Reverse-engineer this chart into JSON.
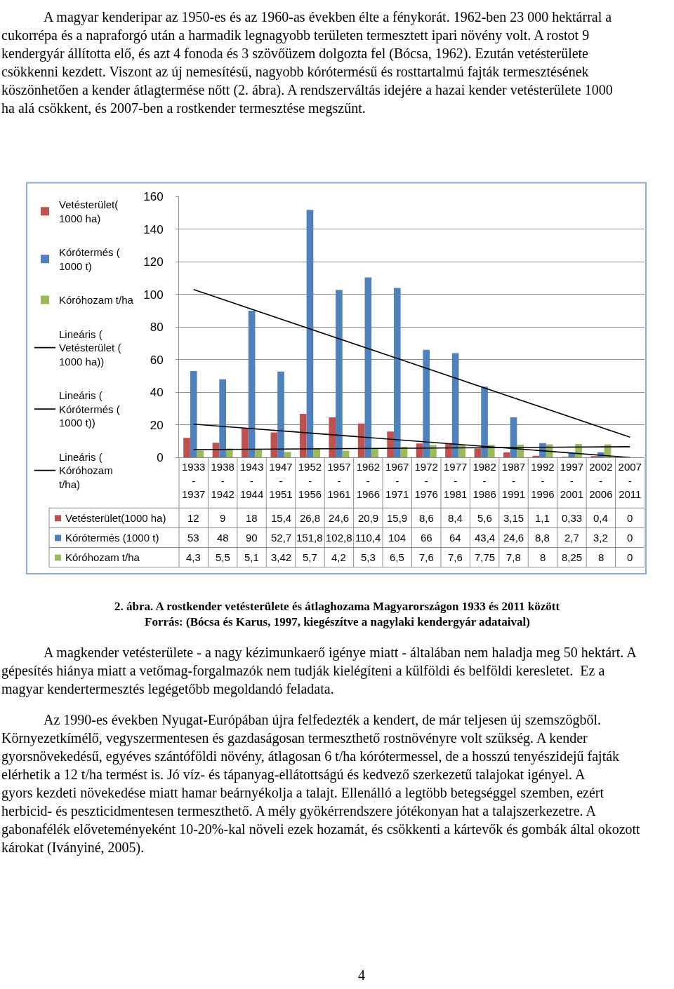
{
  "chart_data": {
    "type": "bar",
    "title": "2. ábra. A rostkender vetésterülete és átlaghozama Magyarországon 1933 és 2011 között",
    "subtitle": "Forrás: (Bócsa és Karus, 1997, kiegészítve a nagylaki kendergyár adataival)",
    "categories": [
      "1933 - 1937",
      "1938 - 1942",
      "1943 - 1944",
      "1947 - 1951",
      "1952 - 1956",
      "1957 - 1961",
      "1962 - 1966",
      "1967 - 1971",
      "1972 - 1976",
      "1977 - 1981",
      "1982 - 1986",
      "1987 - 1991",
      "1992 - 1996",
      "1997 - 2001",
      "2002 - 2006",
      "2007 - 2011"
    ],
    "series": [
      {
        "name": "Vetésterület(1000 ha)",
        "color": "#c0504d",
        "values": [
          12,
          9,
          18,
          15.4,
          26.8,
          24.6,
          20.9,
          15.9,
          8.6,
          8.4,
          5.6,
          3.15,
          1.1,
          0.33,
          0.4,
          0
        ],
        "value_labels": [
          "12",
          "9",
          "18",
          "15,4",
          "26,8",
          "24,6",
          "20,9",
          "15,9",
          "8,6",
          "8,4",
          "5,6",
          "3,15",
          "1,1",
          "0,33",
          "0,4",
          "0"
        ]
      },
      {
        "name": "Kórótermés (1000 t)",
        "color": "#4f81bd",
        "values": [
          53,
          48,
          90,
          52.7,
          151.8,
          102.8,
          110.4,
          104,
          66,
          64,
          43.4,
          24.6,
          8.8,
          2.7,
          3.2,
          0
        ],
        "value_labels": [
          "53",
          "48",
          "90",
          "52,7",
          "151,8",
          "102,8",
          "110,4",
          "104",
          "66",
          "64",
          "43,4",
          "24,6",
          "8,8",
          "2,7",
          "3,2",
          "0"
        ]
      },
      {
        "name": "Kóróhozam t/ha",
        "color": "#9bbb59",
        "values": [
          4.3,
          5.5,
          5.1,
          3.42,
          5.7,
          4.2,
          5.3,
          6.5,
          7.6,
          7.6,
          7.75,
          7.8,
          8,
          8.25,
          8,
          0
        ],
        "value_labels": [
          "4,3",
          "5,5",
          "5,1",
          "3,42",
          "5,7",
          "4,2",
          "5,3",
          "6,5",
          "7,6",
          "7,6",
          "7,75",
          "7,8",
          "8",
          "8,25",
          "8",
          "0"
        ]
      },
      {
        "name": "Lineáris (Vetésterület (1000 ha))",
        "type": "line",
        "color": "#000000",
        "x": [
          "1933 - 1937",
          "2007 - 2011"
        ],
        "values": [
          20.4,
          0
        ]
      },
      {
        "name": "Lineáris (Kórótermés (1000 t))",
        "type": "line",
        "color": "#000000",
        "x": [
          "1933 - 1937",
          "2007 - 2011"
        ],
        "values": [
          103,
          12.5
        ]
      },
      {
        "name": "Lineáris (Kóróhozam t/ha)",
        "type": "line",
        "color": "#000000",
        "x": [
          "1933 - 1937",
          "2007 - 2011"
        ],
        "values": [
          4.8,
          6.6
        ]
      }
    ],
    "ylim": [
      0,
      160
    ],
    "yticks": [
      0,
      20,
      40,
      60,
      80,
      100,
      120,
      140,
      160
    ],
    "grid": "y",
    "legend": "left",
    "annotations": [
      "A magyar kenderipar az 1950-es és az 1960-as években élte a fénykorát. 1962-ben 23 000 hektárral a cukorrépa és a napraforgó után a harmadik legnagyobb területen termesztett ipari növény volt. A rostot 9 kendergyár állította elő, és azt 4 fonoda és 3 szövőüzem dolgozta fel (Bócsa, 1962). Ezután vetésterülete csökkenni kezdett. Viszont az új nemesítésű, nagyobb kórótermésű és rosttartalmú fajták termesztésének köszönhetően a kender átlagtermése nőtt (2. ábra). A rendszerváltás idejére a hazai kender vetésterülete 1000 ha alá csökkent, és 2007-ben a rostkender termesztése megszűnt.",
      "A magkender vetésterülete - a nagy kézimunkaerő igénye miatt - általában nem haladja meg 50 hektárt. A gépesítés hiánya miatt a vetőmag-forgalmazók nem tudják kielégíteni a külföldi és belföldi keresletet.  Ez a magyar kendertermesztés legégetőbb megoldandó feladata.",
      "Az 1990-es években Nyugat-Európában újra felfedezték a kendert, de már teljesen új szemszögből. Környezetkímélő, vegyszermentesen és gazdaságosan termeszthető rostnövényre volt szükség. A kender gyorsnövekedésű, egyéves szántóföldi növény, átlagosan 6 t/ha kórótermessel, de a hosszú tenyészidejű fajták elérhetik a 12 t/ha termést is. Jó víz- és tápanyag-ellátottságú és kedvező szerkezetű talajokat igényel. A gyors kezdeti növekedése miatt hamar beárnyékolja a talajt. Ellenálló a legtöbb betegséggel szemben, ezért herbicid- és peszticidmentesen termeszthető. A mély gyökérrendszere jótékonyan hat a talajszerkezetre. A gabonafélék előveteményeként 10-20%-kal növeli ezek hozamát, és csökkenti a kártevők és gombák által okozott károkat (Iványiné, 2005).",
      "4"
    ]
  }
}
